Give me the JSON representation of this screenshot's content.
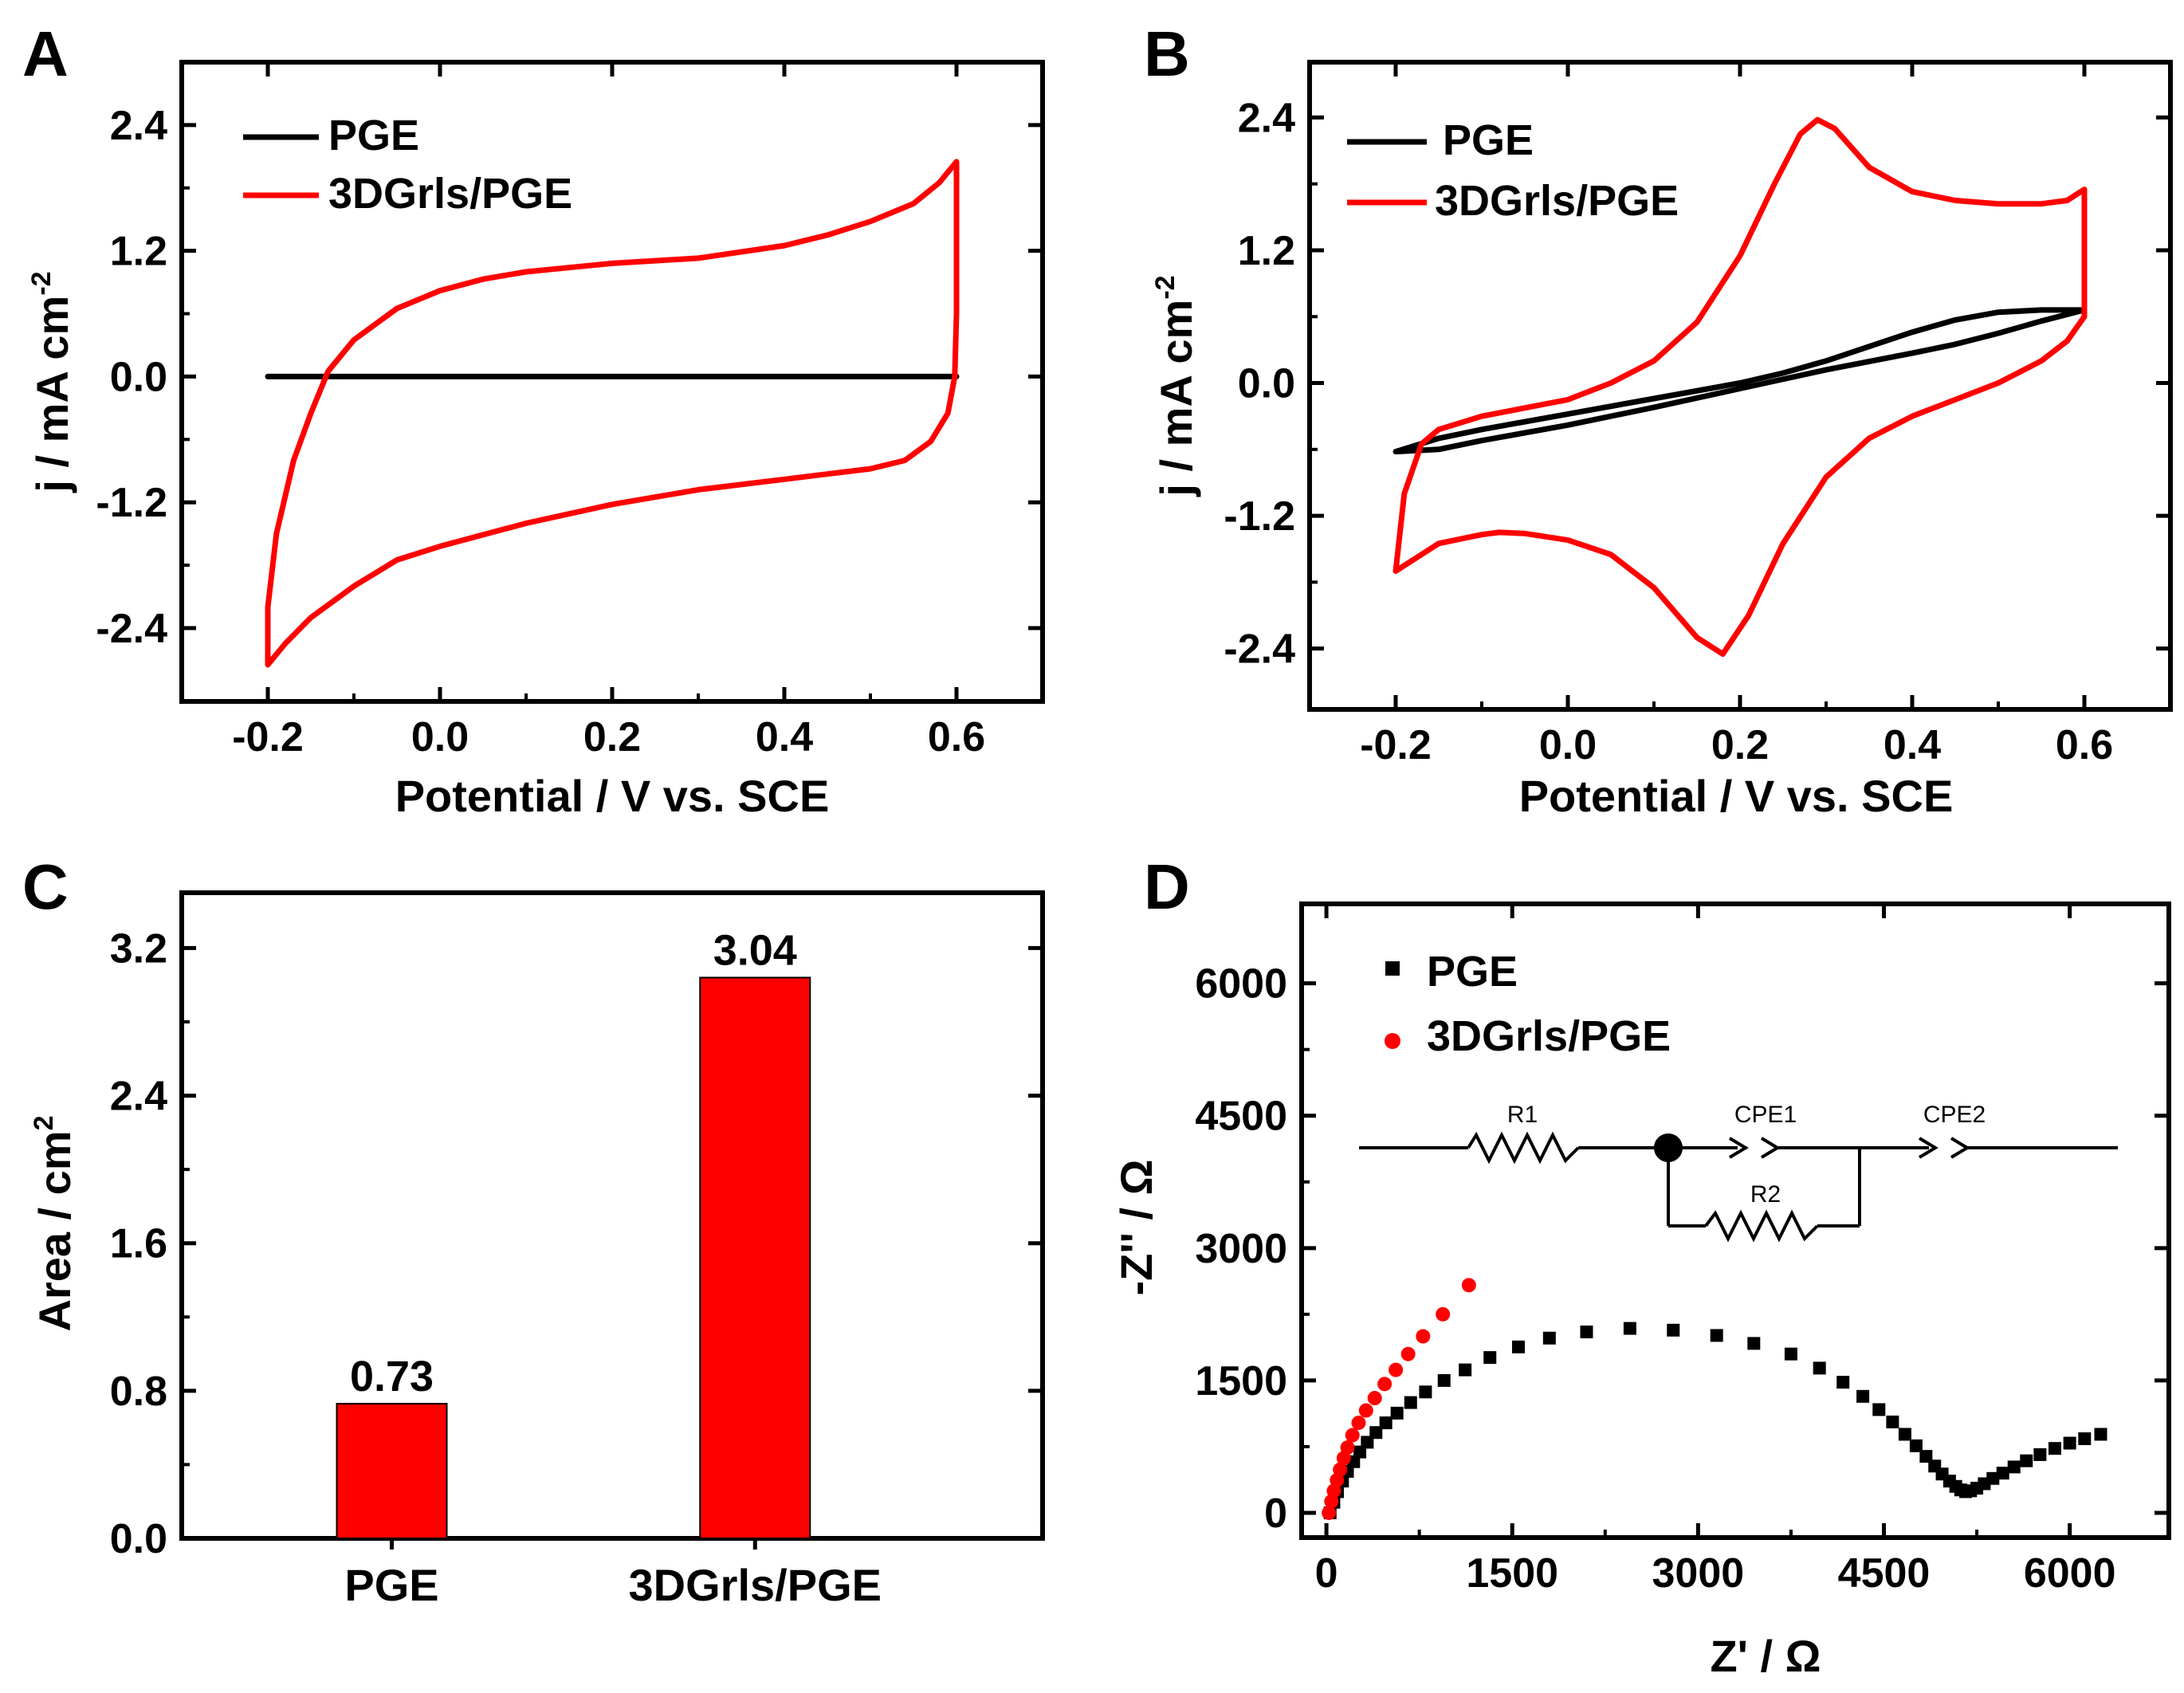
{
  "chart_data": [
    {
      "panel": "A",
      "type": "line",
      "xlabel": "Potential / V vs. SCE",
      "ylabel": "j / mA cm",
      "ylabel_sup": "-2",
      "xlim": [
        -0.3,
        0.7
      ],
      "ylim": [
        -3.1,
        3.0
      ],
      "xticks": [
        -0.2,
        0.0,
        0.2,
        0.4,
        0.6
      ],
      "xtick_labels": [
        "-0.2",
        "0.0",
        "0.2",
        "0.4",
        "0.6"
      ],
      "yticks": [
        -2.4,
        -1.2,
        0.0,
        1.2,
        2.4
      ],
      "ytick_labels": [
        "-2.4",
        "-1.2",
        "0.0",
        "1.2",
        "2.4"
      ],
      "legend_position": "top-left",
      "series": [
        {
          "name": "PGE",
          "color": "#000000",
          "x": [
            -0.2,
            0.6,
            -0.2
          ],
          "y": [
            0.0,
            0.0,
            0.0
          ]
        },
        {
          "name": "3DGrls/PGE",
          "color": "#ff0000",
          "x": [
            -0.2,
            -0.19,
            -0.17,
            -0.15,
            -0.13,
            -0.1,
            -0.05,
            0.0,
            0.05,
            0.1,
            0.15,
            0.2,
            0.3,
            0.4,
            0.45,
            0.5,
            0.55,
            0.58,
            0.6,
            0.6,
            0.598,
            0.59,
            0.57,
            0.54,
            0.5,
            0.45,
            0.4,
            0.3,
            0.2,
            0.1,
            0.0,
            -0.05,
            -0.1,
            -0.15,
            -0.18,
            -0.2,
            -0.2
          ],
          "y": [
            -2.2,
            -1.5,
            -0.8,
            -0.35,
            0.05,
            0.35,
            0.65,
            0.82,
            0.93,
            1.0,
            1.04,
            1.08,
            1.13,
            1.25,
            1.35,
            1.48,
            1.65,
            1.85,
            2.05,
            0.6,
            0.0,
            -0.35,
            -0.62,
            -0.8,
            -0.88,
            -0.93,
            -0.98,
            -1.08,
            -1.22,
            -1.4,
            -1.62,
            -1.75,
            -2.0,
            -2.3,
            -2.55,
            -2.75,
            -2.2
          ]
        }
      ]
    },
    {
      "panel": "B",
      "type": "line",
      "xlabel": "Potential / V vs. SCE",
      "ylabel": "j / mA cm",
      "ylabel_sup": "-2",
      "xlim": [
        -0.3,
        0.7
      ],
      "ylim": [
        -2.95,
        2.9
      ],
      "xticks": [
        -0.2,
        0.0,
        0.2,
        0.4,
        0.6
      ],
      "xtick_labels": [
        "-0.2",
        "0.0",
        "0.2",
        "0.4",
        "0.6"
      ],
      "yticks": [
        -2.4,
        -1.2,
        0.0,
        1.2,
        2.4
      ],
      "ytick_labels": [
        "-2.4",
        "-1.2",
        "0.0",
        "1.2",
        "2.4"
      ],
      "legend_position": "top-left",
      "series": [
        {
          "name": "PGE",
          "color": "#000000",
          "x": [
            -0.2,
            -0.15,
            -0.1,
            0.0,
            0.1,
            0.2,
            0.25,
            0.3,
            0.35,
            0.4,
            0.45,
            0.5,
            0.55,
            0.6,
            0.55,
            0.5,
            0.45,
            0.4,
            0.3,
            0.2,
            0.1,
            0.0,
            -0.1,
            -0.15,
            -0.2
          ],
          "y": [
            -0.62,
            -0.5,
            -0.42,
            -0.28,
            -0.14,
            0.0,
            0.09,
            0.2,
            0.33,
            0.46,
            0.57,
            0.64,
            0.66,
            0.66,
            0.56,
            0.45,
            0.35,
            0.27,
            0.12,
            -0.05,
            -0.22,
            -0.38,
            -0.52,
            -0.6,
            -0.62
          ]
        },
        {
          "name": "3DGrls/PGE",
          "color": "#ff0000",
          "x": [
            -0.2,
            -0.19,
            -0.17,
            -0.15,
            -0.1,
            0.0,
            0.05,
            0.1,
            0.15,
            0.2,
            0.24,
            0.27,
            0.29,
            0.31,
            0.35,
            0.4,
            0.45,
            0.5,
            0.55,
            0.58,
            0.6,
            0.6,
            0.58,
            0.55,
            0.5,
            0.45,
            0.4,
            0.35,
            0.3,
            0.25,
            0.21,
            0.18,
            0.15,
            0.1,
            0.05,
            0.0,
            -0.05,
            -0.08,
            -0.1,
            -0.15,
            -0.18,
            -0.2,
            -0.2
          ],
          "y": [
            -1.7,
            -1.0,
            -0.55,
            -0.42,
            -0.3,
            -0.15,
            0.0,
            0.2,
            0.55,
            1.15,
            1.8,
            2.25,
            2.38,
            2.3,
            1.95,
            1.73,
            1.65,
            1.62,
            1.62,
            1.65,
            1.75,
            0.6,
            0.38,
            0.2,
            0.0,
            -0.15,
            -0.3,
            -0.5,
            -0.85,
            -1.45,
            -2.1,
            -2.45,
            -2.3,
            -1.85,
            -1.55,
            -1.42,
            -1.36,
            -1.35,
            -1.37,
            -1.45,
            -1.6,
            -1.7,
            -1.7
          ]
        }
      ]
    },
    {
      "panel": "C",
      "type": "bar",
      "categories": [
        "PGE",
        "3DGrls/PGE"
      ],
      "values": [
        0.73,
        3.04
      ],
      "value_labels": [
        "0.73",
        "3.04"
      ],
      "bar_color": "#ff0000",
      "xlabel": "",
      "ylabel": "Area / cm",
      "ylabel_sup": "2",
      "ylim": [
        0.0,
        3.5
      ],
      "yticks": [
        0.0,
        0.8,
        1.6,
        2.4,
        3.2
      ],
      "ytick_labels": [
        "0.0",
        "0.8",
        "1.6",
        "2.4",
        "3.2"
      ]
    },
    {
      "panel": "D",
      "type": "scatter",
      "xlabel": "Z' / Ω",
      "ylabel": "-Z'' / Ω",
      "xlim": [
        -200,
        6800
      ],
      "ylim": [
        -280,
        6900
      ],
      "xticks": [
        0,
        1500,
        3000,
        4500,
        6000
      ],
      "xtick_labels": [
        "0",
        "1500",
        "3000",
        "4500",
        "6000"
      ],
      "yticks": [
        0,
        1500,
        3000,
        4500,
        6000
      ],
      "ytick_labels": [
        "0",
        "1500",
        "3000",
        "4500",
        "6000"
      ],
      "legend_position": "top-left",
      "inset": {
        "labels": [
          "R1",
          "CPE1",
          "CPE2",
          "R2"
        ]
      },
      "series": [
        {
          "name": "PGE",
          "color": "#000000",
          "marker": "square",
          "x": [
            30,
            60,
            90,
            130,
            170,
            220,
            270,
            330,
            400,
            480,
            570,
            680,
            800,
            950,
            1120,
            1320,
            1550,
            1800,
            2100,
            2450,
            2800,
            3150,
            3450,
            3750,
            3980,
            4170,
            4330,
            4460,
            4570,
            4670,
            4760,
            4840,
            4910,
            4970,
            5030,
            5080,
            5120,
            5160,
            5200,
            5250,
            5310,
            5380,
            5460,
            5550,
            5650,
            5760,
            5880,
            6000,
            6120,
            6250
          ],
          "y": [
            0,
            120,
            240,
            360,
            470,
            580,
            690,
            800,
            910,
            1020,
            1130,
            1250,
            1370,
            1500,
            1620,
            1760,
            1880,
            1980,
            2050,
            2090,
            2070,
            2010,
            1920,
            1800,
            1640,
            1480,
            1320,
            1170,
            1030,
            890,
            760,
            640,
            530,
            440,
            360,
            300,
            260,
            240,
            250,
            280,
            330,
            390,
            450,
            520,
            590,
            660,
            730,
            790,
            840,
            890
          ]
        },
        {
          "name": "3DGrls/PGE",
          "color": "#ff0000",
          "marker": "circle",
          "x": [
            20,
            40,
            60,
            85,
            110,
            140,
            170,
            210,
            260,
            320,
            390,
            470,
            560,
            660,
            780,
            940,
            1150
          ],
          "y": [
            0,
            130,
            250,
            370,
            490,
            620,
            740,
            880,
            1020,
            1160,
            1300,
            1460,
            1620,
            1800,
            2000,
            2250,
            2580
          ]
        }
      ]
    }
  ]
}
